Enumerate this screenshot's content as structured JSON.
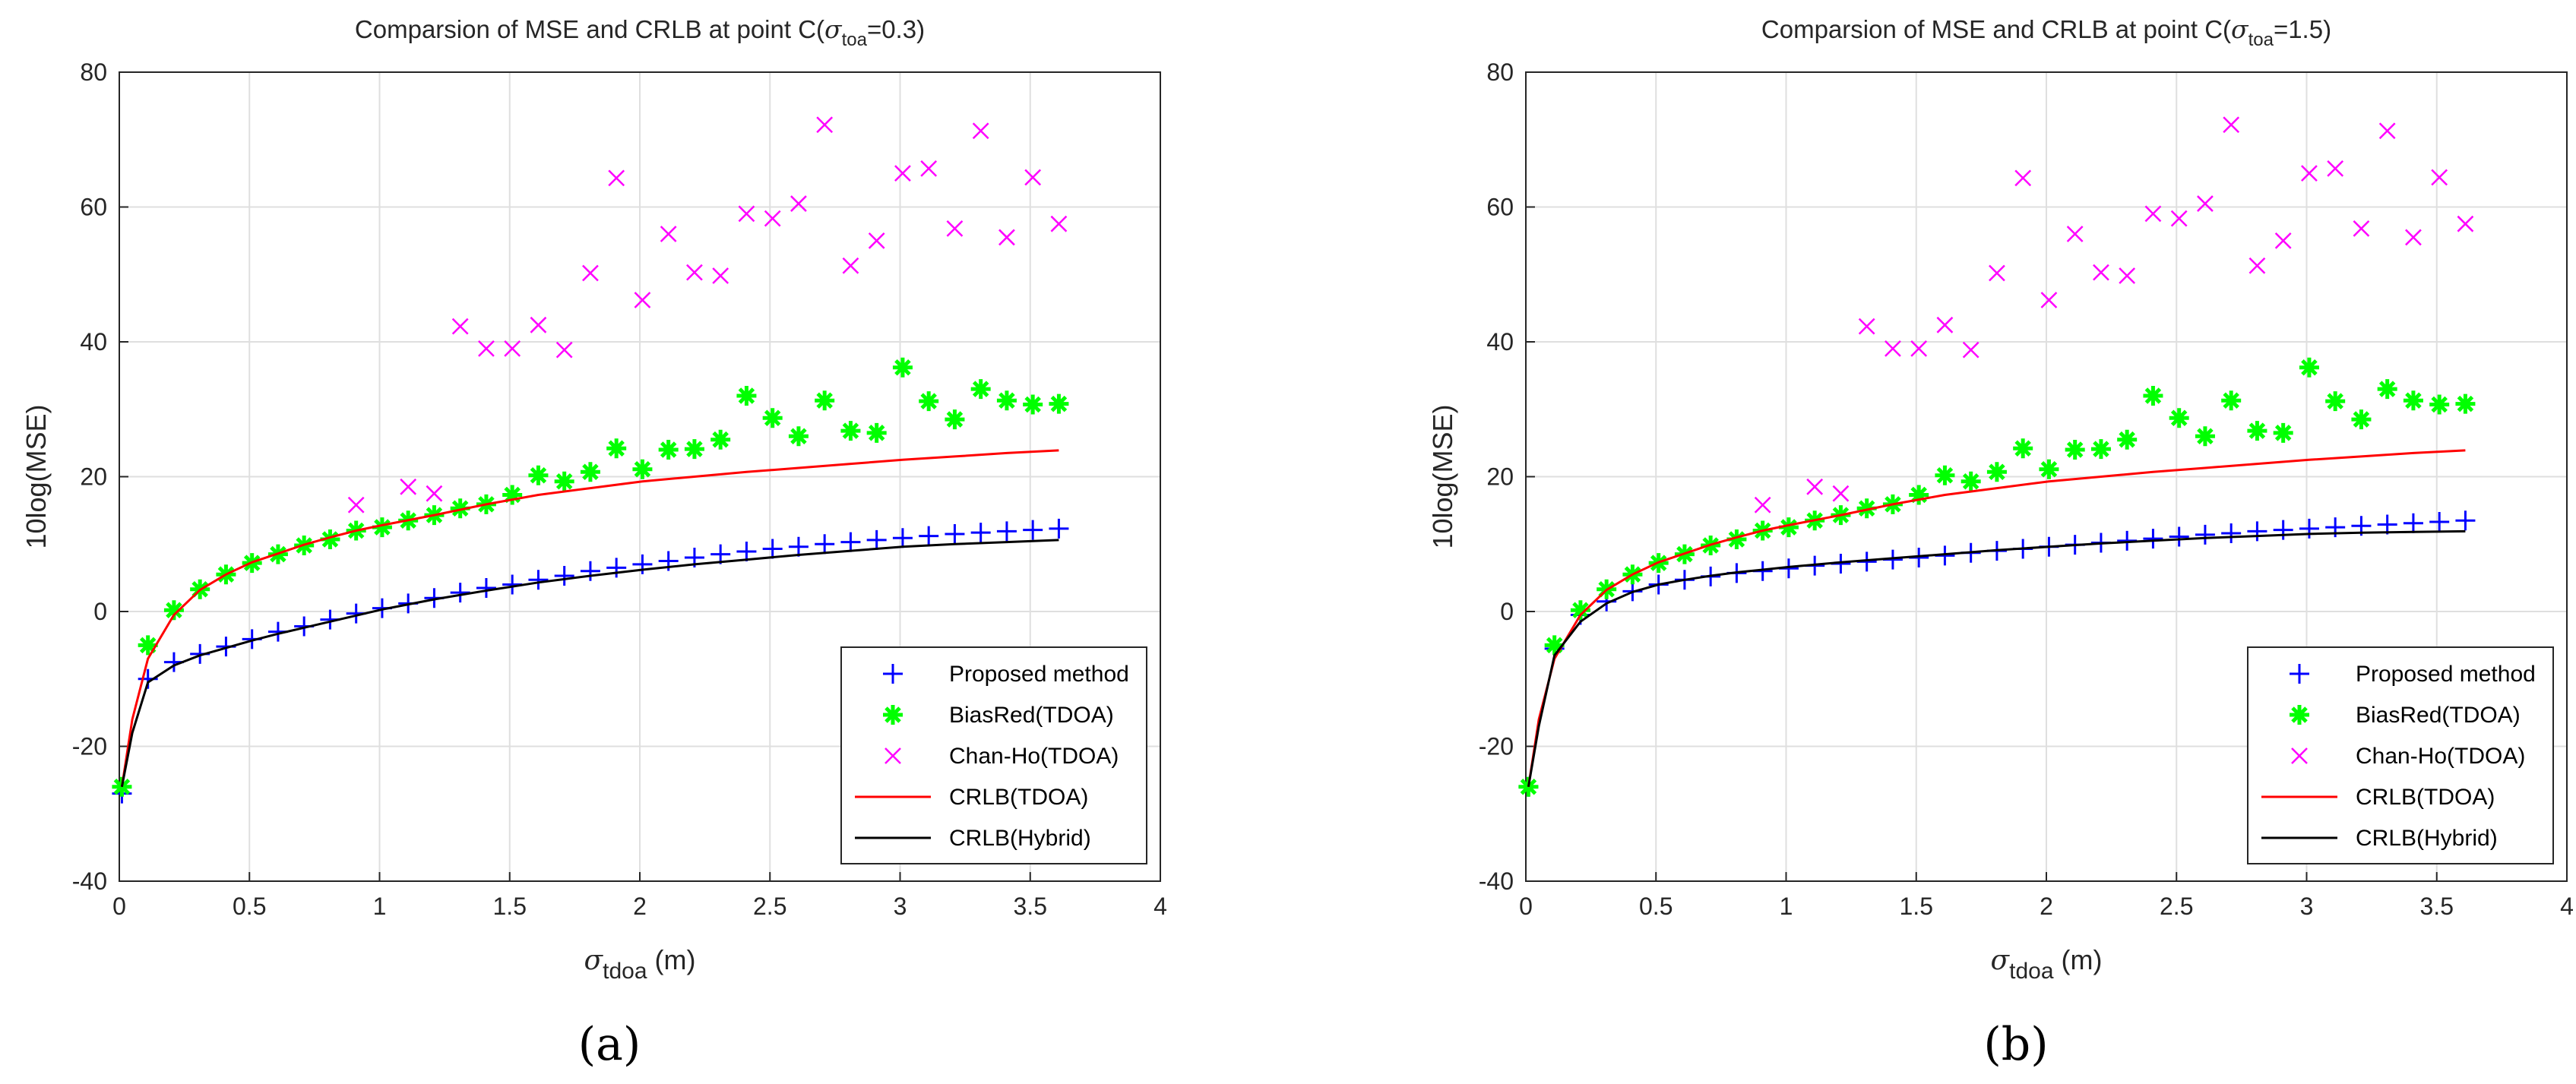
{
  "colors": {
    "proposed": "#0000ff",
    "biasred": "#00ff00",
    "chanho": "#ff00ff",
    "crlb_tdoa": "#ff0000",
    "crlb_hybrid": "#000000",
    "grid": "#dfdfdf",
    "text": "#262626"
  },
  "chart_data": [
    {
      "type": "scatter",
      "panel_label": "(a)",
      "title_prefix": "Comparsion of MSE and CRLB at point C(",
      "title_symbol": "σ",
      "title_subscript": "toa",
      "title_suffix": "=0.3)",
      "xlabel_symbol": "σ",
      "xlabel_subscript": "tdoa",
      "xlabel_suffix": " (m)",
      "ylabel": "10log(MSE)",
      "xlim": [
        0,
        4
      ],
      "ylim": [
        -40,
        80
      ],
      "xticks": [
        "0",
        "0.5",
        "1",
        "1.5",
        "2",
        "2.5",
        "3",
        "3.5",
        "4"
      ],
      "yticks": [
        "-40",
        "-20",
        "0",
        "20",
        "40",
        "60",
        "80"
      ],
      "grid": true,
      "legend_position": "bottom-right",
      "legend": [
        "Proposed method",
        "BiasRed(TDOA)",
        "Chan-Ho(TDOA)",
        "CRLB(TDOA)",
        "CRLB(Hybrid)"
      ],
      "series": [
        {
          "name": "Proposed method",
          "marker": "+",
          "x": [
            0.01,
            0.11,
            0.21,
            0.31,
            0.41,
            0.51,
            0.61,
            0.71,
            0.81,
            0.91,
            1.01,
            1.11,
            1.21,
            1.31,
            1.41,
            1.51,
            1.61,
            1.71,
            1.81,
            1.91,
            2.01,
            2.11,
            2.21,
            2.31,
            2.41,
            2.51,
            2.61,
            2.71,
            2.81,
            2.91,
            3.01,
            3.11,
            3.21,
            3.31,
            3.41,
            3.51,
            3.61
          ],
          "values": [
            -27,
            -10,
            -7.5,
            -6.3,
            -5.2,
            -4.1,
            -3,
            -2.2,
            -1.2,
            -0.3,
            0.5,
            1.2,
            2,
            2.8,
            3.5,
            4,
            4.7,
            5.3,
            6,
            6.5,
            7,
            7.5,
            8,
            8.5,
            8.9,
            9.3,
            9.6,
            10,
            10.3,
            10.6,
            10.9,
            11.2,
            11.5,
            11.7,
            11.9,
            12.1,
            12.3
          ]
        },
        {
          "name": "BiasRed(TDOA)",
          "marker": "*",
          "x": [
            0.01,
            0.11,
            0.21,
            0.31,
            0.41,
            0.51,
            0.61,
            0.71,
            0.81,
            0.91,
            1.01,
            1.11,
            1.21,
            1.31,
            1.41,
            1.51,
            1.61,
            1.71,
            1.81,
            1.91,
            2.01,
            2.11,
            2.21,
            2.31,
            2.41,
            2.51,
            2.61,
            2.71,
            2.81,
            2.91,
            3.01,
            3.11,
            3.21,
            3.31,
            3.41,
            3.51,
            3.61
          ],
          "values": [
            -26,
            -5,
            0.2,
            3.3,
            5.5,
            7.2,
            8.5,
            9.8,
            10.7,
            12,
            12.5,
            13.5,
            14.3,
            15.3,
            15.9,
            17.3,
            20.2,
            19.3,
            20.7,
            24.2,
            21.1,
            24,
            24.1,
            25.5,
            32,
            28.7,
            26,
            31.3,
            26.8,
            26.5,
            36.2,
            31.2,
            28.5,
            33,
            31.3,
            30.7,
            30.8
          ]
        },
        {
          "name": "Chan-Ho(TDOA)",
          "marker": "x",
          "x": [
            0.91,
            1.11,
            1.21,
            1.31,
            1.41,
            1.51,
            1.61,
            1.71,
            1.81,
            1.91,
            2.01,
            2.11,
            2.21,
            2.31,
            2.41,
            2.51,
            2.61,
            2.71,
            2.81,
            2.91,
            3.01,
            3.11,
            3.21,
            3.31,
            3.41,
            3.51,
            3.61
          ],
          "values": [
            15.8,
            18.5,
            17.5,
            42.3,
            39,
            39,
            42.5,
            38.8,
            50.2,
            64.3,
            46.2,
            56,
            50.3,
            49.8,
            59,
            58.3,
            60.5,
            72.2,
            51.3,
            55,
            65,
            65.7,
            56.8,
            71.3,
            55.5,
            64.4,
            57.5
          ]
        },
        {
          "name": "CRLB(TDOA)",
          "marker": "line",
          "x": [
            0.01,
            0.05,
            0.11,
            0.21,
            0.31,
            0.41,
            0.51,
            0.61,
            0.71,
            0.81,
            0.91,
            1.01,
            1.21,
            1.41,
            1.61,
            1.81,
            2.01,
            2.21,
            2.41,
            2.61,
            2.81,
            3.01,
            3.21,
            3.41,
            3.61
          ],
          "values": [
            -26,
            -16,
            -7,
            -0.5,
            3.2,
            5.5,
            7.3,
            8.6,
            9.9,
            11,
            12,
            12.8,
            14.3,
            15.9,
            17.3,
            18.3,
            19.3,
            20,
            20.7,
            21.3,
            21.9,
            22.5,
            23,
            23.5,
            23.9
          ]
        },
        {
          "name": "CRLB(Hybrid)",
          "marker": "line",
          "x": [
            0.01,
            0.05,
            0.11,
            0.21,
            0.31,
            0.41,
            0.51,
            0.61,
            0.71,
            0.81,
            0.91,
            1.01,
            1.21,
            1.41,
            1.61,
            1.81,
            2.01,
            2.21,
            2.41,
            2.61,
            2.81,
            3.01,
            3.21,
            3.41,
            3.61
          ],
          "values": [
            -26,
            -18,
            -10.5,
            -8,
            -6.5,
            -5.4,
            -4.3,
            -3.3,
            -2.4,
            -1.5,
            -0.6,
            0.3,
            1.8,
            3.1,
            4.3,
            5.3,
            6.2,
            7,
            7.7,
            8.4,
            9,
            9.6,
            10,
            10.3,
            10.6
          ]
        }
      ]
    },
    {
      "type": "scatter",
      "panel_label": "(b)",
      "title_prefix": "Comparsion of MSE and CRLB at point C(",
      "title_symbol": "σ",
      "title_subscript": "toa",
      "title_suffix": "=1.5)",
      "xlabel_symbol": "σ",
      "xlabel_subscript": "tdoa",
      "xlabel_suffix": " (m)",
      "ylabel": "10log(MSE)",
      "xlim": [
        0,
        4
      ],
      "ylim": [
        -40,
        80
      ],
      "xticks": [
        "0",
        "0.5",
        "1",
        "1.5",
        "2",
        "2.5",
        "3",
        "3.5",
        "4"
      ],
      "yticks": [
        "-40",
        "-20",
        "0",
        "20",
        "40",
        "60",
        "80"
      ],
      "grid": true,
      "legend_position": "bottom-right",
      "legend": [
        "Proposed method",
        "BiasRed(TDOA)",
        "Chan-Ho(TDOA)",
        "CRLB(TDOA)",
        "CRLB(Hybrid)"
      ],
      "series": [
        {
          "name": "Proposed method",
          "marker": "+",
          "x": [
            0.01,
            0.11,
            0.21,
            0.31,
            0.41,
            0.51,
            0.61,
            0.71,
            0.81,
            0.91,
            1.01,
            1.11,
            1.21,
            1.31,
            1.41,
            1.51,
            1.61,
            1.71,
            1.81,
            1.91,
            2.01,
            2.11,
            2.21,
            2.31,
            2.41,
            2.51,
            2.61,
            2.71,
            2.81,
            2.91,
            3.01,
            3.11,
            3.21,
            3.31,
            3.41,
            3.51,
            3.61
          ],
          "values": [
            -26,
            -5.5,
            -0.5,
            1.5,
            3,
            4,
            4.7,
            5.2,
            5.7,
            6,
            6.4,
            6.8,
            7.1,
            7.4,
            7.7,
            8,
            8.3,
            8.7,
            9,
            9.3,
            9.6,
            9.9,
            10.2,
            10.5,
            10.8,
            11.1,
            11.4,
            11.6,
            11.9,
            12.1,
            12.3,
            12.5,
            12.7,
            12.9,
            13.1,
            13.3,
            13.5
          ]
        },
        {
          "name": "BiasRed(TDOA)",
          "marker": "*",
          "x": [
            0.01,
            0.11,
            0.21,
            0.31,
            0.41,
            0.51,
            0.61,
            0.71,
            0.81,
            0.91,
            1.01,
            1.11,
            1.21,
            1.31,
            1.41,
            1.51,
            1.61,
            1.71,
            1.81,
            1.91,
            2.01,
            2.11,
            2.21,
            2.31,
            2.41,
            2.51,
            2.61,
            2.71,
            2.81,
            2.91,
            3.01,
            3.11,
            3.21,
            3.31,
            3.41,
            3.51,
            3.61
          ],
          "values": [
            -26,
            -5,
            0.2,
            3.3,
            5.5,
            7.2,
            8.5,
            9.8,
            10.7,
            12,
            12.5,
            13.5,
            14.3,
            15.3,
            15.9,
            17.3,
            20.2,
            19.3,
            20.7,
            24.2,
            21.1,
            24,
            24.1,
            25.5,
            32,
            28.7,
            26,
            31.3,
            26.8,
            26.5,
            36.2,
            31.2,
            28.5,
            33,
            31.3,
            30.7,
            30.8
          ]
        },
        {
          "name": "Chan-Ho(TDOA)",
          "marker": "x",
          "x": [
            0.91,
            1.11,
            1.21,
            1.31,
            1.41,
            1.51,
            1.61,
            1.71,
            1.81,
            1.91,
            2.01,
            2.11,
            2.21,
            2.31,
            2.41,
            2.51,
            2.61,
            2.71,
            2.81,
            2.91,
            3.01,
            3.11,
            3.21,
            3.31,
            3.41,
            3.51,
            3.61
          ],
          "values": [
            15.8,
            18.5,
            17.5,
            42.3,
            39,
            39,
            42.5,
            38.8,
            50.2,
            64.3,
            46.2,
            56,
            50.3,
            49.8,
            59,
            58.3,
            60.5,
            72.2,
            51.3,
            55,
            65,
            65.7,
            56.8,
            71.3,
            55.5,
            64.4,
            57.5
          ]
        },
        {
          "name": "CRLB(TDOA)",
          "marker": "line",
          "x": [
            0.01,
            0.05,
            0.11,
            0.21,
            0.31,
            0.41,
            0.51,
            0.61,
            0.71,
            0.81,
            0.91,
            1.01,
            1.21,
            1.41,
            1.61,
            1.81,
            2.01,
            2.21,
            2.41,
            2.61,
            2.81,
            3.01,
            3.21,
            3.41,
            3.61
          ],
          "values": [
            -26,
            -16,
            -7,
            -0.5,
            3.2,
            5.5,
            7.3,
            8.6,
            9.9,
            11,
            12,
            12.8,
            14.3,
            15.9,
            17.3,
            18.3,
            19.3,
            20,
            20.7,
            21.3,
            21.9,
            22.5,
            23,
            23.5,
            23.9
          ]
        },
        {
          "name": "CRLB(Hybrid)",
          "marker": "line",
          "x": [
            0.01,
            0.05,
            0.11,
            0.21,
            0.31,
            0.41,
            0.51,
            0.61,
            0.71,
            0.81,
            0.91,
            1.01,
            1.21,
            1.41,
            1.61,
            1.81,
            2.01,
            2.21,
            2.41,
            2.61,
            2.81,
            3.01,
            3.21,
            3.41,
            3.61
          ],
          "values": [
            -26,
            -17,
            -6.5,
            -1.5,
            1.2,
            2.9,
            4,
            4.7,
            5.3,
            5.8,
            6.2,
            6.6,
            7.3,
            7.9,
            8.5,
            9.1,
            9.6,
            10.1,
            10.5,
            10.9,
            11.2,
            11.5,
            11.7,
            11.8,
            11.9
          ]
        }
      ]
    }
  ]
}
